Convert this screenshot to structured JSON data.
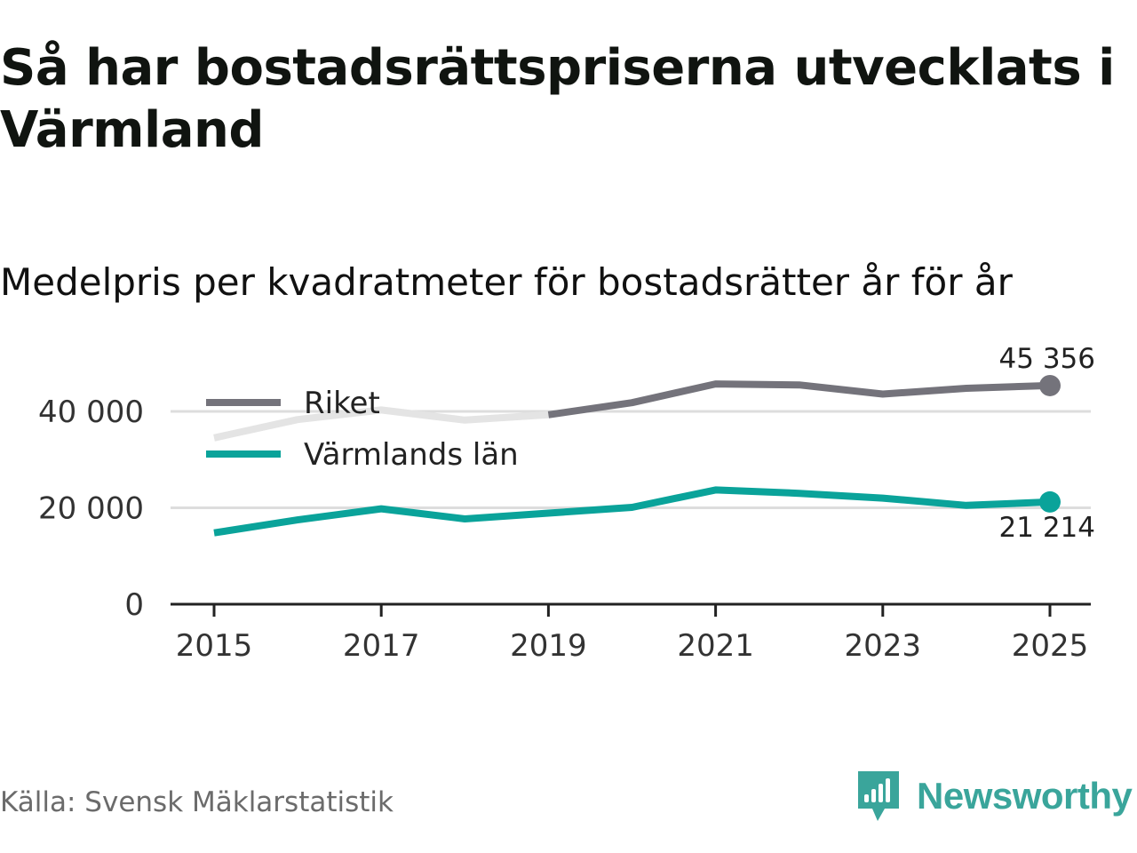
{
  "title": "Så har bostadsrättspriserna utvecklats i Värmland",
  "subtitle": "Medelpris per kvadratmeter för bostadsrätter år för år",
  "source": "Källa: Svensk Mäklarstatistik",
  "brand": "Newsworthy",
  "colors": {
    "riket": "#74737b",
    "riket_faded": "#e4e4e4",
    "varmland": "#0aa39a",
    "grid": "#dddddd",
    "axis": "#222222",
    "brand": "#3aa59b"
  },
  "chart_data": {
    "type": "line",
    "title": "Medelpris per kvadratmeter för bostadsrätter år för år",
    "x": [
      2015,
      2016,
      2017,
      2018,
      2019,
      2020,
      2021,
      2022,
      2023,
      2024,
      2025
    ],
    "x_ticks": [
      "2015",
      "2017",
      "2019",
      "2021",
      "2023",
      "2025"
    ],
    "y_ticks": [
      "0",
      "20 000",
      "40 000"
    ],
    "ylim": [
      0,
      46000
    ],
    "grid": true,
    "legend_position": "top-left",
    "series": [
      {
        "name": "Riket",
        "key": "riket",
        "values": [
          34500,
          38300,
          40300,
          38200,
          39300,
          41800,
          45700,
          45500,
          43600,
          44800,
          45356
        ],
        "faded_until": 2019,
        "end_label": "45 356"
      },
      {
        "name": "Värmlands län",
        "key": "varmland",
        "values": [
          14800,
          17500,
          19800,
          17700,
          18900,
          20100,
          23700,
          23000,
          22000,
          20500,
          21214
        ],
        "end_label": "21 214"
      }
    ]
  }
}
